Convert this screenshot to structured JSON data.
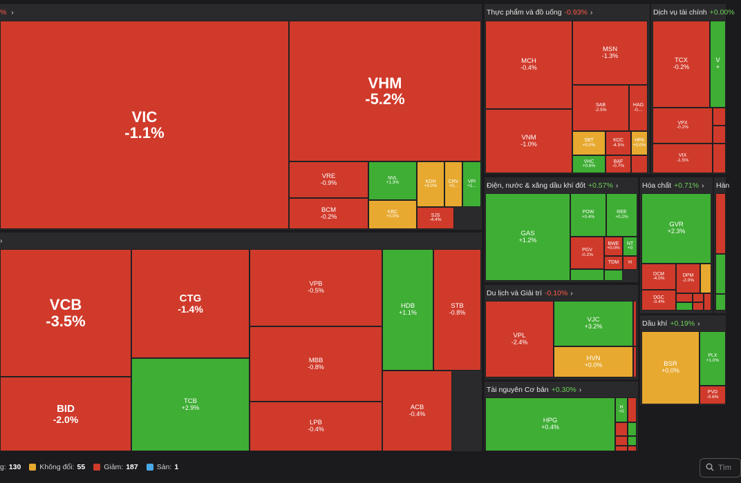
{
  "sectors": {
    "top_left": {
      "name": "",
      "change": "%",
      "chev": "›"
    },
    "bank": {
      "name": "",
      "chev": "›"
    },
    "food": {
      "name": "Thực phẩm và đồ uống",
      "change": "-0.93%",
      "chev": "›"
    },
    "finance": {
      "name": "Dịch vụ tài chính",
      "change": "+0.00%",
      "chev": ""
    },
    "utilities": {
      "name": "Điện, nước & xăng dầu khí đốt",
      "change": "+0.57%",
      "chev": "›"
    },
    "chemicals": {
      "name": "Hóa chất",
      "change": "+0.71%",
      "chev": "›"
    },
    "goods": {
      "name": "Hàn",
      "change": "",
      "chev": ""
    },
    "travel": {
      "name": "Du lịch và Giải trí",
      "change": "-0.10%",
      "chev": "›"
    },
    "oilgas": {
      "name": "Dầu khí",
      "change": "+0.19%",
      "chev": "›"
    },
    "resources": {
      "name": "Tài nguyên Cơ bản",
      "change": "+0.30%",
      "chev": "›"
    }
  },
  "tiles": {
    "vic": {
      "t": "VIC",
      "p": "-1.1%"
    },
    "vhm": {
      "t": "VHM",
      "p": "-5.2%"
    },
    "vre": {
      "t": "VRE",
      "p": "-0.9%"
    },
    "bcm": {
      "t": "BCM",
      "p": "-0.2%"
    },
    "nvl": {
      "t": "NVL",
      "p": "+1.3%"
    },
    "kbc": {
      "t": "KBC",
      "p": "+0.0%"
    },
    "kdh": {
      "t": "KDH",
      "p": "+0.0%"
    },
    "crv": {
      "t": "CRV",
      "p": "+0..."
    },
    "vpi": {
      "t": "VPI",
      "p": "+1..."
    },
    "sjs": {
      "t": "SJS",
      "p": "-4.4%"
    },
    "vcb": {
      "t": "VCB",
      "p": "-3.5%"
    },
    "bid": {
      "t": "BID",
      "p": "-2.0%"
    },
    "ctg": {
      "t": "CTG",
      "p": "-1.4%"
    },
    "tcb": {
      "t": "TCB",
      "p": "+2.9%"
    },
    "vpb": {
      "t": "VPB",
      "p": "-0.5%"
    },
    "mbb": {
      "t": "MBB",
      "p": "-0.8%"
    },
    "lpb": {
      "t": "LPB",
      "p": "-0.4%"
    },
    "hdb": {
      "t": "HDB",
      "p": "+1.1%"
    },
    "stb": {
      "t": "STB",
      "p": "-0.8%"
    },
    "acb": {
      "t": "ACB",
      "p": "-0.4%"
    },
    "mch": {
      "t": "MCH",
      "p": "-0.4%"
    },
    "vnm": {
      "t": "VNM",
      "p": "-1.0%"
    },
    "msn": {
      "t": "MSN",
      "p": "-1.3%"
    },
    "sab": {
      "t": "SAB",
      "p": "-2.5%"
    },
    "hag": {
      "t": "HAG",
      "p": "-0...."
    },
    "sbt": {
      "t": "SBT",
      "p": "+0.0%"
    },
    "kdc": {
      "t": "KDC",
      "p": "-4.5%"
    },
    "hpa": {
      "t": "HPA",
      "p": "+0.0%"
    },
    "vhc": {
      "t": "VHC",
      "p": "+0.6%"
    },
    "baf": {
      "t": "BAF",
      "p": "-0.7%"
    },
    "tcx": {
      "t": "TCX",
      "p": "-0.2%"
    },
    "vx2": {
      "t": "V",
      "p": "+"
    },
    "vpx": {
      "t": "VPX",
      "p": "-0.2%"
    },
    "vix": {
      "t": "VIX",
      "p": "-1.5%"
    },
    "gas": {
      "t": "GAS",
      "p": "+1.2%"
    },
    "pow": {
      "t": "POW",
      "p": "+0.4%"
    },
    "ree": {
      "t": "REE",
      "p": "+0.2%"
    },
    "pgv": {
      "t": "PGV",
      "p": "-0.2%"
    },
    "bwe": {
      "t": "BWE",
      "p": "+0.0%"
    },
    "nt2": {
      "t": "NT",
      "p": "+0"
    },
    "tdm": {
      "t": "TDM",
      "p": ""
    },
    "hx": {
      "t": "H",
      "p": ""
    },
    "gvr": {
      "t": "GVR",
      "p": "+2.3%"
    },
    "dcm": {
      "t": "DCM",
      "p": "-4.0%"
    },
    "dpm": {
      "t": "DPM",
      "p": "-2.0%"
    },
    "dgc": {
      "t": "DGC",
      "p": "-0.4%"
    },
    "vpl": {
      "t": "VPL",
      "p": "-2.4%"
    },
    "vjc": {
      "t": "VJC",
      "p": "+3.2%"
    },
    "hvn": {
      "t": "HVN",
      "p": "+0.0%"
    },
    "bsr": {
      "t": "BSR",
      "p": "+0.0%"
    },
    "plx": {
      "t": "PLX",
      "p": "+1.0%"
    },
    "pvd": {
      "t": "PVD",
      "p": "-0.6%"
    },
    "hpg": {
      "t": "HPG",
      "p": "+0.4%"
    },
    "hsg": {
      "t": "H",
      "p": "+0"
    }
  },
  "legend": {
    "up_label": "g:",
    "up_count": "130",
    "flat_label": "Không đổi:",
    "flat_count": "55",
    "down_label": "Giảm:",
    "down_count": "187",
    "floor_label": "Sàn:",
    "floor_count": "1"
  },
  "search": {
    "placeholder": "Tìm"
  },
  "colors": {
    "up": "#3fae35",
    "down": "#d03a2b",
    "flat": "#e7a92f",
    "floor": "#4aa8e8"
  }
}
